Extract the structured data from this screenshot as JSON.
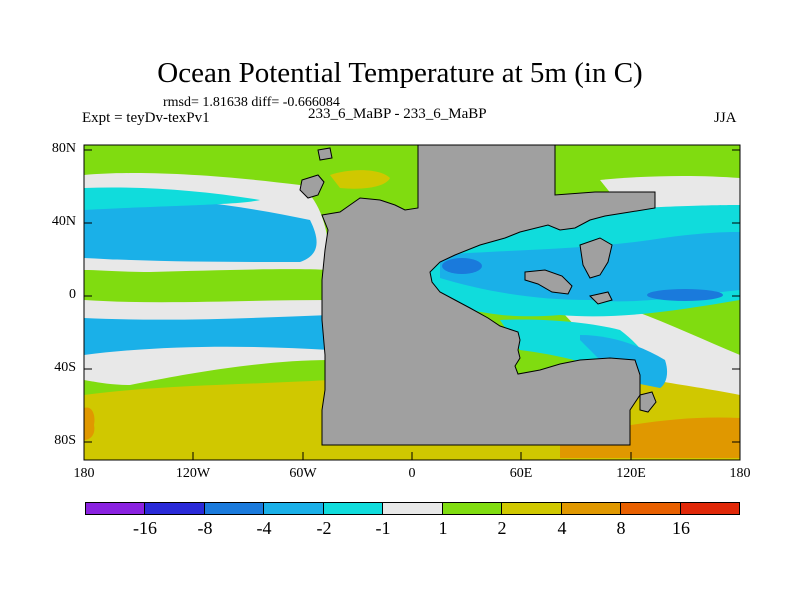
{
  "title": "Ocean Potential Temperature at 5m (in C)",
  "stats": "rmsd= 1.81638 diff= -0.666084",
  "expt": "Expt = teyDv-texPv1",
  "cases": "233_6_MaBP - 233_6_MaBP",
  "season": "JJA",
  "y_axis": {
    "labels": [
      "80N",
      "40N",
      "0",
      "40S",
      "80S"
    ]
  },
  "x_axis": {
    "labels": [
      "180",
      "120W",
      "60W",
      "0",
      "60E",
      "120E",
      "180"
    ]
  },
  "colorbar": {
    "colors": [
      "#8a22e0",
      "#2a2ad8",
      "#1a7adc",
      "#1ab0e8",
      "#10dcdc",
      "#e8e8e8",
      "#80dc10",
      "#d0c800",
      "#e09800",
      "#e86000",
      "#e02808"
    ],
    "labels": [
      "-16",
      "-8",
      "-4",
      "-2",
      "-1",
      "1",
      "2",
      "4",
      "8",
      "16"
    ]
  },
  "palette": {
    "land": "#a0a0a0",
    "green": "#80dc10",
    "white": "#e8e8e8",
    "cyan": "#10dcdc",
    "lightblue": "#1ab0e8",
    "blue": "#1a7adc",
    "yellow": "#d0c800",
    "orange": "#e09800"
  }
}
